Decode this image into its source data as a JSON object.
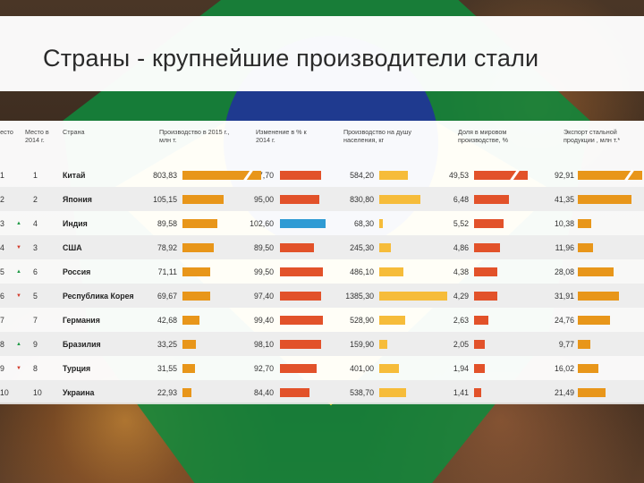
{
  "title": "Страны - крупнейшие производители стали",
  "colors": {
    "production": "#e8961a",
    "change": "#e2522a",
    "change_highlight": "#2f9bd4",
    "per_capita": "#f6bc3a",
    "share": "#e2522a",
    "export": "#e8961a"
  },
  "headers": {
    "rank2015": "Место",
    "rank2014": "Место в 2014 г.",
    "country": "Страна",
    "production": "Производство в 2015 г., млн т.",
    "change": "Изменение в % к 2014 г.",
    "per_capita": "Производство на душу населения, кг",
    "share": "Доля в мировом производстве, %",
    "export": "Экспорт стальной продукции , млн т.*"
  },
  "rows": [
    {
      "rank2015": "1",
      "arrow": "",
      "rank2014": "1",
      "country": "Китай",
      "production": "803,83",
      "change": "97,70",
      "per_capita": "584,20",
      "share": "49,53",
      "export": "92,91"
    },
    {
      "rank2015": "2",
      "arrow": "",
      "rank2014": "2",
      "country": "Япония",
      "production": "105,15",
      "change": "95,00",
      "per_capita": "830,80",
      "share": "6,48",
      "export": "41,35"
    },
    {
      "rank2015": "3",
      "arrow": "▲",
      "rank2014": "4",
      "country": "Индия",
      "production": "89,58",
      "change": "102,60",
      "per_capita": "68,30",
      "share": "5,52",
      "export": "10,38"
    },
    {
      "rank2015": "4",
      "arrow": "▼",
      "rank2014": "3",
      "country": "США",
      "production": "78,92",
      "change": "89,50",
      "per_capita": "245,30",
      "share": "4,86",
      "export": "11,96"
    },
    {
      "rank2015": "5",
      "arrow": "▲",
      "rank2014": "6",
      "country": "Россия",
      "production": "71,11",
      "change": "99,50",
      "per_capita": "486,10",
      "share": "4,38",
      "export": "28,08"
    },
    {
      "rank2015": "6",
      "arrow": "▼",
      "rank2014": "5",
      "country": "Республика Корея",
      "production": "69,67",
      "change": "97,40",
      "per_capita": "1385,30",
      "share": "4,29",
      "export": "31,91"
    },
    {
      "rank2015": "7",
      "arrow": "",
      "rank2014": "7",
      "country": "Германия",
      "production": "42,68",
      "change": "99,40",
      "per_capita": "528,90",
      "share": "2,63",
      "export": "24,76"
    },
    {
      "rank2015": "8",
      "arrow": "▲",
      "rank2014": "9",
      "country": "Бразилия",
      "production": "33,25",
      "change": "98,10",
      "per_capita": "159,90",
      "share": "2,05",
      "export": "9,77"
    },
    {
      "rank2015": "9",
      "arrow": "▼",
      "rank2014": "8",
      "country": "Турция",
      "production": "31,55",
      "change": "92,70",
      "per_capita": "401,00",
      "share": "1,94",
      "export": "16,02"
    },
    {
      "rank2015": "10",
      "arrow": "",
      "rank2014": "10",
      "country": "Украина",
      "production": "22,93",
      "change": "84,40",
      "per_capita": "538,70",
      "share": "1,41",
      "export": "21,49"
    }
  ]
}
